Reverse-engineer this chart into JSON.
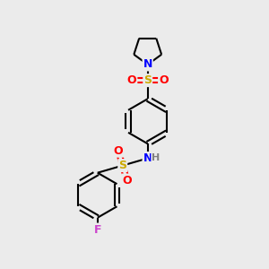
{
  "background_color": "#ebebeb",
  "atom_colors": {
    "C": "#000000",
    "N": "#0000ff",
    "O": "#ff0000",
    "S": "#ccaa00",
    "F": "#cc44cc",
    "H": "#808080"
  },
  "bond_color": "#000000",
  "bond_width": 1.5,
  "figsize": [
    3.0,
    3.0
  ],
  "dpi": 100
}
